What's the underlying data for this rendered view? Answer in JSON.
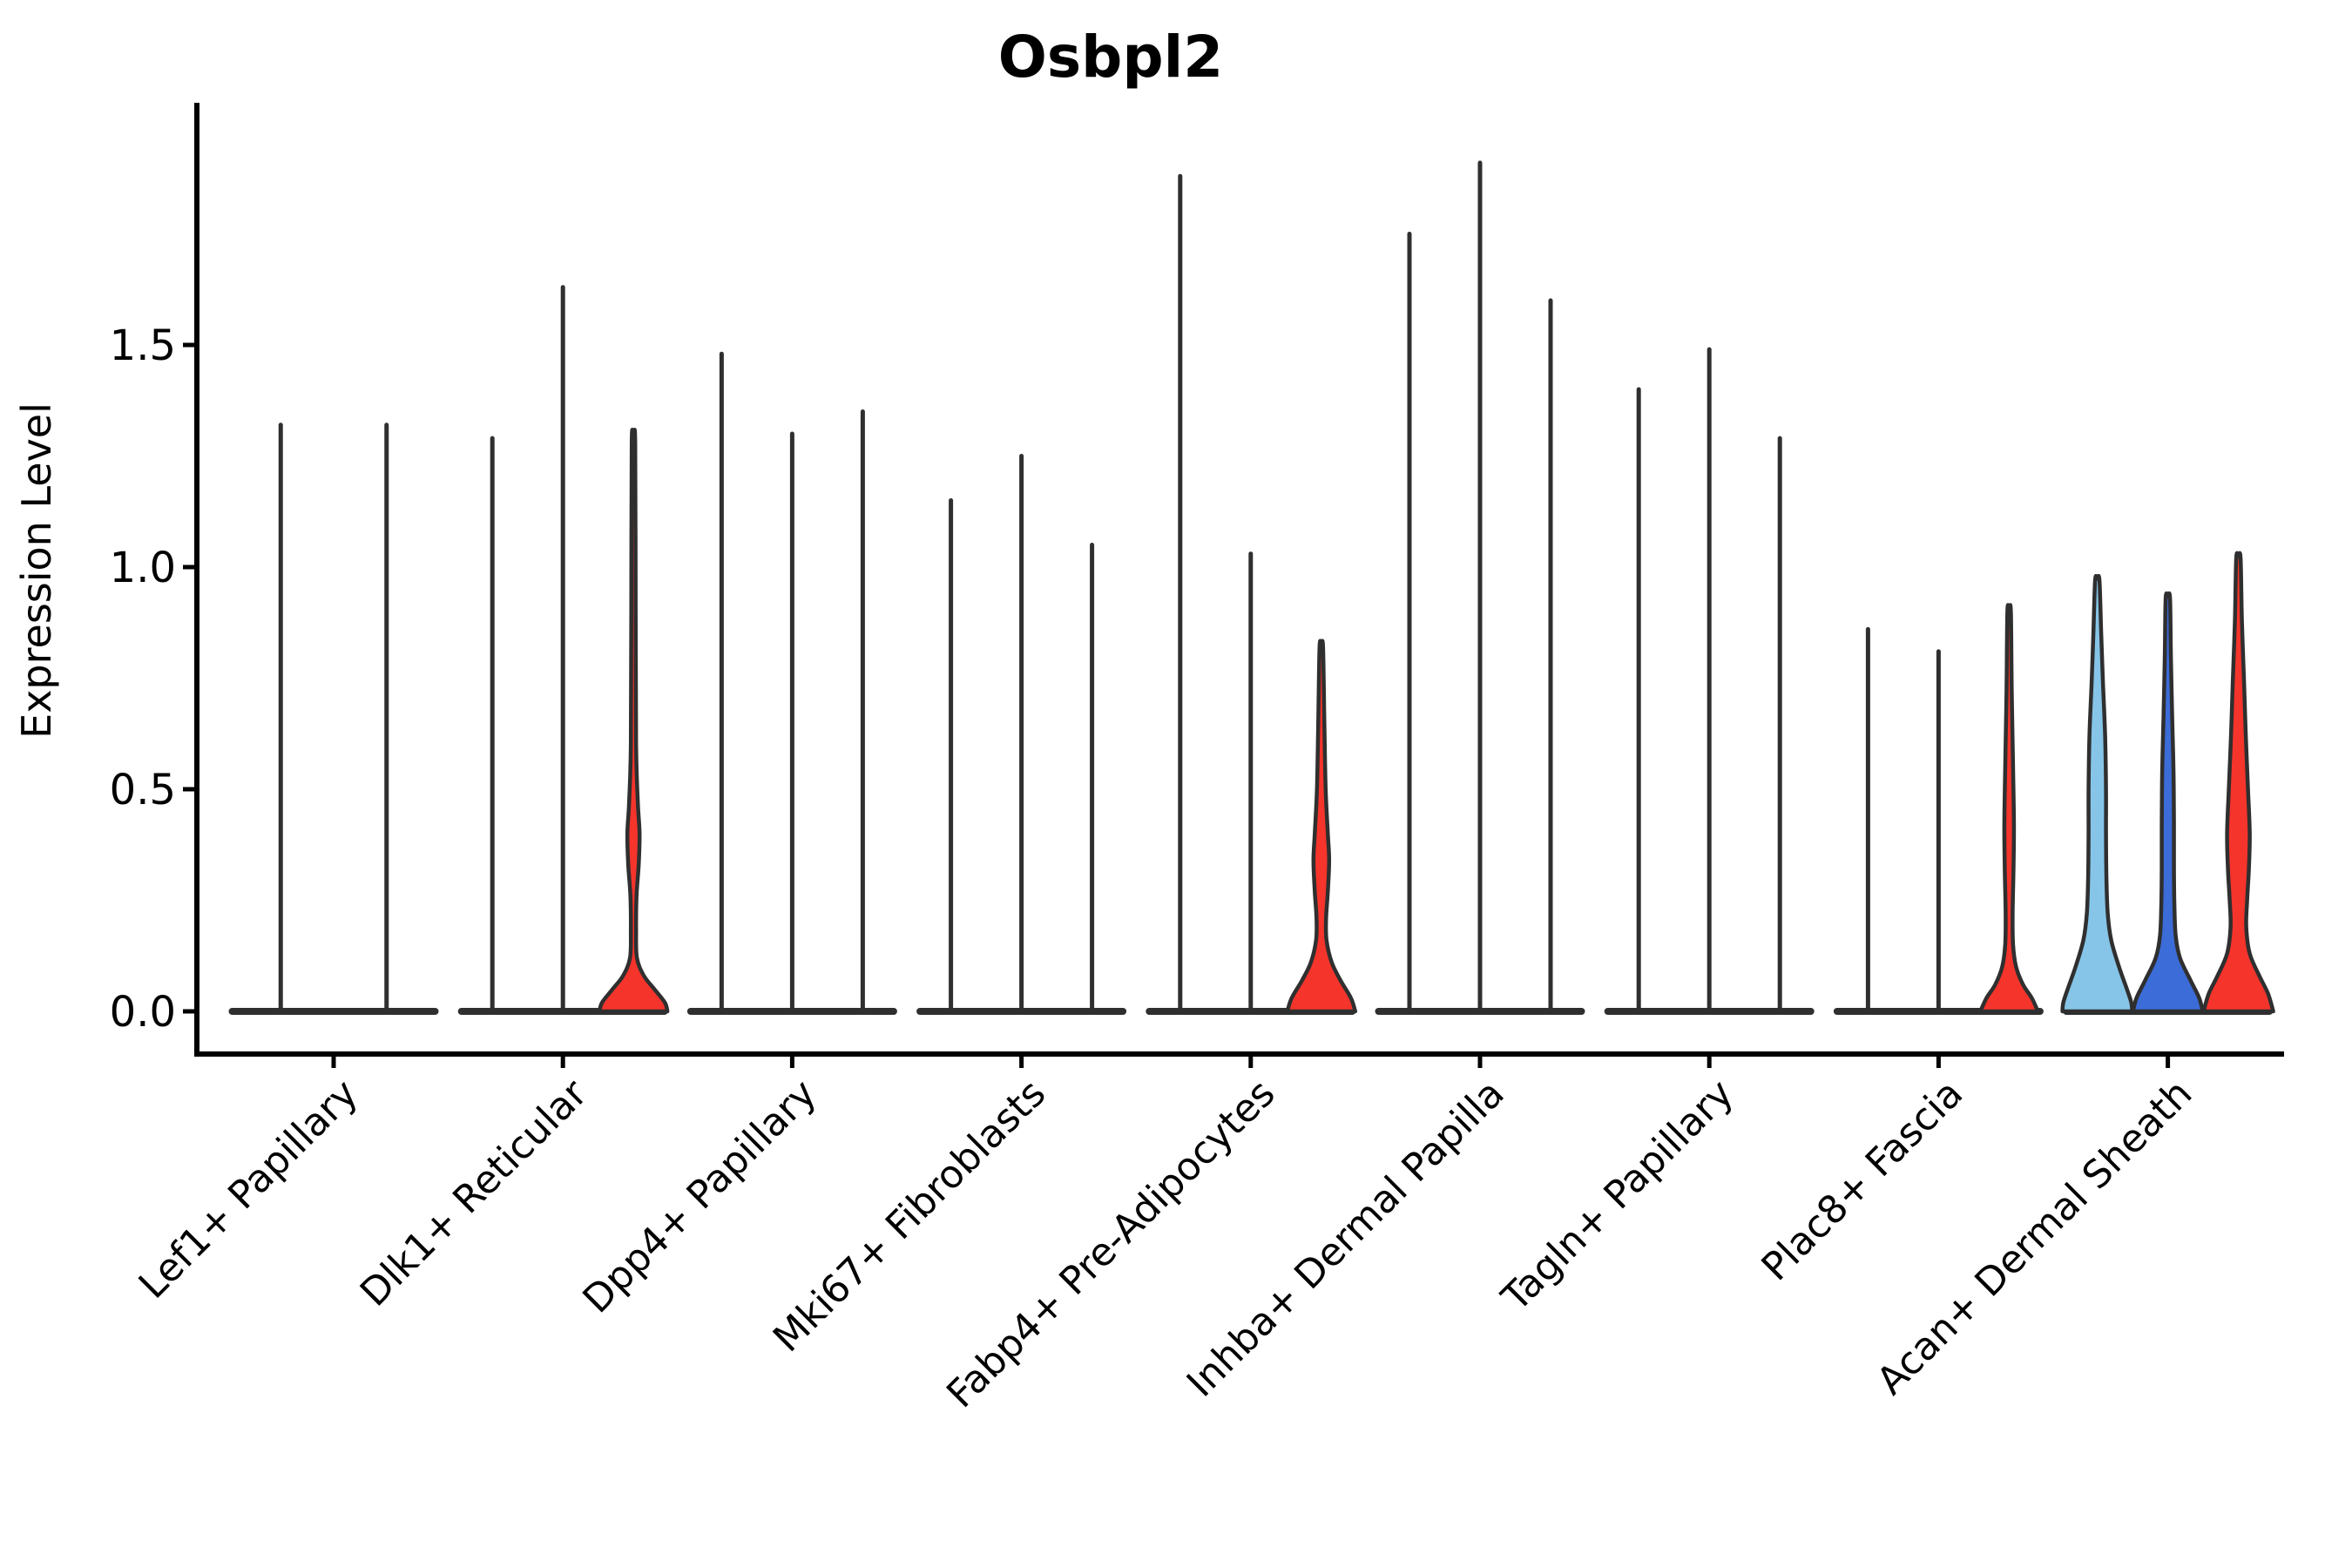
{
  "chart_data": {
    "type": "violin",
    "title": "Osbpl2",
    "xlabel": "",
    "ylabel": "Expression Level",
    "ylim": [
      0,
      2.04
    ],
    "yticks": [
      0.0,
      0.5,
      1.0,
      1.5
    ],
    "ytick_labels": [
      "0.0",
      "0.5",
      "1.0",
      "1.5"
    ],
    "grid": false,
    "legend": "none",
    "xtick_rotation_deg": 45,
    "categories": [
      "Lef1+ Papillary",
      "Dlk1+ Reticular",
      "Dpp4+ Papillary",
      "Mki67+ Fibroblasts",
      "Fabp4+ Pre-Adipocytes",
      "Inhba+ Dermal Papilla",
      "Tagln+ Papillary",
      "Plac8+ Fascia",
      "Acan+ Dermal Sheath"
    ],
    "colors": {
      "outline": "#2f2f2f",
      "axis": "#000000",
      "red": "#f5342c",
      "blue": "#3c6cd7",
      "lightblue": "#86c5e8"
    },
    "groups": [
      {
        "category": "Lef1+ Papillary",
        "violins": [
          {
            "max_expression": 1.32,
            "fill": null
          },
          {
            "max_expression": 1.32,
            "fill": null
          }
        ]
      },
      {
        "category": "Dlk1+ Reticular",
        "violins": [
          {
            "max_expression": 1.29,
            "fill": null
          },
          {
            "max_expression": 1.63,
            "fill": null
          },
          {
            "max_expression": 1.28,
            "fill": "#f5342c",
            "profile": [
              [
                1.28,
                2
              ],
              [
                0.9,
                2.5
              ],
              [
                0.6,
                3
              ],
              [
                0.47,
                5
              ],
              [
                0.4,
                7
              ],
              [
                0.33,
                6
              ],
              [
                0.26,
                3.5
              ],
              [
                0.18,
                3
              ],
              [
                0.12,
                4
              ],
              [
                0.08,
                12
              ],
              [
                0.05,
                24
              ],
              [
                0.02,
                36
              ],
              [
                0,
                39
              ]
            ]
          }
        ]
      },
      {
        "category": "Dpp4+ Papillary",
        "violins": [
          {
            "max_expression": 1.48,
            "fill": null
          },
          {
            "max_expression": 1.3,
            "fill": null
          },
          {
            "max_expression": 1.35,
            "fill": null
          }
        ]
      },
      {
        "category": "Mki67+ Fibroblasts",
        "violins": [
          {
            "max_expression": 1.15,
            "fill": null
          },
          {
            "max_expression": 1.25,
            "fill": null
          },
          {
            "max_expression": 1.05,
            "fill": null
          }
        ]
      },
      {
        "category": "Fabp4+ Pre-Adipocytes",
        "violins": [
          {
            "max_expression": 1.88,
            "fill": null
          },
          {
            "max_expression": 1.03,
            "fill": null
          },
          {
            "max_expression": 0.82,
            "fill": "#f5342c",
            "profile": [
              [
                0.82,
                2
              ],
              [
                0.65,
                3.5
              ],
              [
                0.5,
                5
              ],
              [
                0.4,
                7.5
              ],
              [
                0.34,
                9
              ],
              [
                0.27,
                7.5
              ],
              [
                0.21,
                5.5
              ],
              [
                0.16,
                6
              ],
              [
                0.11,
                12
              ],
              [
                0.07,
                22
              ],
              [
                0.03,
                34
              ],
              [
                0,
                39
              ]
            ]
          }
        ]
      },
      {
        "category": "Inhba+ Dermal Papilla",
        "violins": [
          {
            "max_expression": 1.75,
            "fill": null
          },
          {
            "max_expression": 1.91,
            "fill": null
          },
          {
            "max_expression": 1.6,
            "fill": null
          }
        ]
      },
      {
        "category": "Tagln+ Papillary",
        "violins": [
          {
            "max_expression": 1.4,
            "fill": null
          },
          {
            "max_expression": 1.49,
            "fill": null
          },
          {
            "max_expression": 1.29,
            "fill": null
          }
        ]
      },
      {
        "category": "Plac8+ Fascia",
        "violins": [
          {
            "max_expression": 0.86,
            "fill": null
          },
          {
            "max_expression": 0.81,
            "fill": null
          },
          {
            "max_expression": 0.9,
            "fill": "#f5342c",
            "profile": [
              [
                0.9,
                2
              ],
              [
                0.72,
                3
              ],
              [
                0.55,
                4.5
              ],
              [
                0.42,
                5.5
              ],
              [
                0.32,
                5
              ],
              [
                0.22,
                4
              ],
              [
                0.15,
                4.5
              ],
              [
                0.1,
                8
              ],
              [
                0.06,
                16
              ],
              [
                0.03,
                26
              ],
              [
                0,
                33
              ]
            ]
          }
        ]
      },
      {
        "category": "Acan+ Dermal Sheath",
        "violins": [
          {
            "max_expression": 0.97,
            "fill": "#86c5e8",
            "profile": [
              [
                0.97,
                2.5
              ],
              [
                0.85,
                4.5
              ],
              [
                0.74,
                6.5
              ],
              [
                0.62,
                9
              ],
              [
                0.5,
                10
              ],
              [
                0.4,
                10
              ],
              [
                0.3,
                10.5
              ],
              [
                0.22,
                12
              ],
              [
                0.16,
                16
              ],
              [
                0.1,
                25
              ],
              [
                0.05,
                34
              ],
              [
                0.02,
                39
              ],
              [
                0,
                40
              ]
            ]
          },
          {
            "max_expression": 0.93,
            "fill": "#3c6cd7",
            "profile": [
              [
                0.93,
                2.5
              ],
              [
                0.8,
                3.5
              ],
              [
                0.66,
                5
              ],
              [
                0.54,
                6.5
              ],
              [
                0.42,
                7
              ],
              [
                0.32,
                7
              ],
              [
                0.24,
                7.5
              ],
              [
                0.17,
                9
              ],
              [
                0.12,
                14
              ],
              [
                0.07,
                26
              ],
              [
                0.03,
                36
              ],
              [
                0,
                40
              ]
            ]
          },
          {
            "max_expression": 1.02,
            "fill": "#f5342c",
            "profile": [
              [
                1.02,
                2.5
              ],
              [
                0.88,
                4
              ],
              [
                0.74,
                6.5
              ],
              [
                0.62,
                8.5
              ],
              [
                0.5,
                11
              ],
              [
                0.4,
                13
              ],
              [
                0.32,
                12
              ],
              [
                0.25,
                10
              ],
              [
                0.19,
                9
              ],
              [
                0.13,
                13
              ],
              [
                0.08,
                24
              ],
              [
                0.04,
                34
              ],
              [
                0,
                40
              ]
            ]
          }
        ]
      }
    ]
  }
}
